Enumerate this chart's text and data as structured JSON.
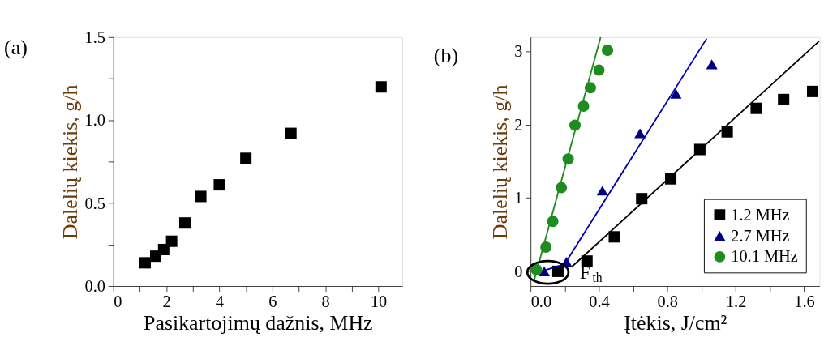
{
  "chart_data": [
    {
      "type": "scatter",
      "title": "(a)",
      "xlabel": "Pasikartojimų dažnis, MHz",
      "ylabel": "Dalelių kiekis, g/h",
      "marker": "square",
      "grid": false,
      "legend": false,
      "x": [
        1.2,
        1.6,
        1.9,
        2.2,
        2.7,
        3.3,
        4.0,
        5.0,
        6.7,
        10.1
      ],
      "series": [
        {
          "color": "#000000",
          "values": [
            0.14,
            0.18,
            0.22,
            0.27,
            0.38,
            0.54,
            0.61,
            0.77,
            0.92,
            1.2
          ]
        }
      ],
      "xlim": [
        0,
        10.9
      ],
      "xticks": [
        0,
        {
          "value": 1,
          "label": null
        },
        2,
        {
          "value": 3,
          "label": null
        },
        4,
        {
          "value": 5,
          "label": null
        },
        6,
        {
          "value": 7,
          "label": null
        },
        8,
        {
          "value": 9,
          "label": null
        },
        10
      ],
      "ylim": [
        0,
        1.5
      ],
      "yticks": [
        {
          "value": 0,
          "label": "0.0"
        },
        {
          "value": 0.25,
          "label": null
        },
        {
          "value": 0.5,
          "label": "0.5"
        },
        {
          "value": 0.75,
          "label": null
        },
        {
          "value": 1,
          "label": "1.0"
        },
        {
          "value": 1.25,
          "label": null
        },
        {
          "value": 1.5,
          "label": "1.5"
        }
      ]
    },
    {
      "type": "scatter",
      "title": "(b)",
      "xlabel": "Įtėkis, J/cm²",
      "ylabel": "Dalelių kiekis, g/h",
      "grid": false,
      "legend": "bottom right",
      "series": [
        {
          "name": "1.2 MHz",
          "color": "#000000",
          "marker": "square",
          "x": [
            0.16,
            0.33,
            0.49,
            0.65,
            0.82,
            0.99,
            1.15,
            1.32,
            1.48,
            1.65
          ],
          "values": [
            0.0,
            0.14,
            0.47,
            0.99,
            1.26,
            1.66,
            1.9,
            2.22,
            2.34,
            2.45
          ]
        },
        {
          "name": "2.7 MHz",
          "color": "#000080",
          "marker": "triangle",
          "x": [
            0.08,
            0.21,
            0.42,
            0.64,
            0.85,
            1.06
          ],
          "values": [
            0.0,
            0.13,
            1.1,
            1.88,
            2.42,
            2.82
          ]
        },
        {
          "name": "10.1 MHz",
          "color": "#1e8c1e",
          "marker": "circle",
          "x": [
            0.035,
            0.09,
            0.13,
            0.18,
            0.22,
            0.26,
            0.31,
            0.35,
            0.4,
            0.45
          ],
          "values": [
            0.02,
            0.33,
            0.68,
            1.14,
            1.53,
            1.99,
            2.25,
            2.5,
            2.74,
            3.01
          ]
        },
        {
          "type": "line",
          "color": "#000000",
          "x": [
            0.24,
            1.69
          ],
          "values": [
            0.06,
            3.14
          ]
        },
        {
          "type": "line",
          "color": "#0000b0",
          "x": [
            0.09,
            0.2,
            1.03
          ],
          "values": [
            0.02,
            0.1,
            3.17
          ]
        },
        {
          "type": "line",
          "color": "#1e8c1e",
          "x": [
            0.02,
            0.41
          ],
          "values": [
            -0.13,
            3.19
          ]
        }
      ],
      "annotations": [
        "F$_{th}$"
      ],
      "xlim": [
        0,
        1.69
      ],
      "xticks": [
        {
          "value": 0,
          "label": "0.0"
        },
        {
          "value": 0.2,
          "label": null
        },
        {
          "value": 0.4,
          "label": "0.4"
        },
        {
          "value": 0.6,
          "label": null
        },
        {
          "value": 0.8,
          "label": "0.8"
        },
        {
          "value": 1.0,
          "label": null
        },
        {
          "value": 1.2,
          "label": "1.2"
        },
        {
          "value": 1.4,
          "label": null
        },
        {
          "value": 1.6,
          "label": "1.6"
        }
      ],
      "ylim": [
        -0.2,
        3.19
      ],
      "yticks": [
        0,
        1,
        2,
        3
      ]
    }
  ]
}
